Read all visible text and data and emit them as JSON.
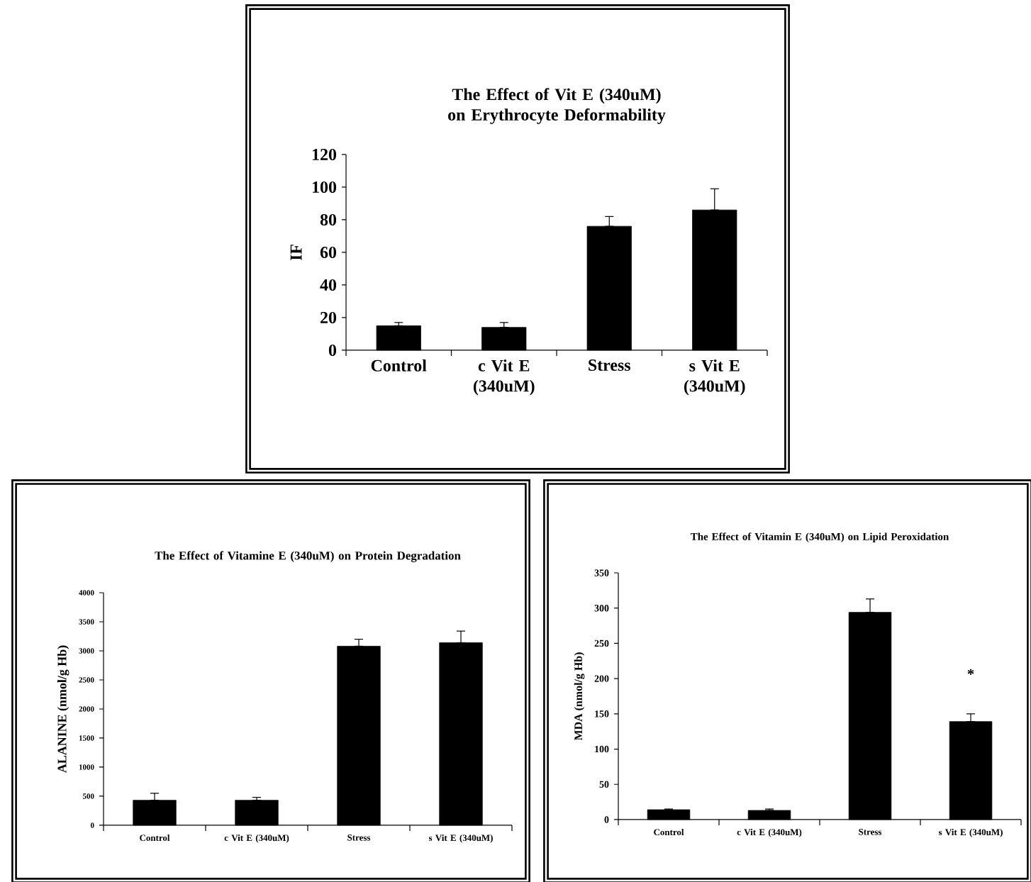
{
  "chart_data": [
    {
      "type": "bar",
      "title": "The Effect of Vit E (340uM) on Erythrocyte Deformability",
      "ylabel": "IF",
      "categories": [
        "Control",
        "c Vit E (340uM)",
        "Stress",
        "s Vit E (340uM)"
      ],
      "values": [
        15,
        14,
        76,
        86
      ],
      "errors": [
        [
          15,
          17
        ],
        [
          14,
          17
        ],
        [
          76,
          82
        ],
        [
          86,
          99
        ]
      ],
      "color": "#000000",
      "ylim": [
        0,
        120
      ],
      "yticks": [
        0,
        20,
        40,
        60,
        80,
        100,
        120
      ]
    },
    {
      "type": "bar",
      "title": "The Effect of Vitamine E (340uM) on Protein Degradation",
      "ylabel": "ALANINE (nmol/g Hb)",
      "categories": [
        "Control",
        "c Vit E (340uM)",
        "Stress",
        "s Vit E (340uM)"
      ],
      "values": [
        430,
        430,
        3080,
        3140
      ],
      "errors": [
        [
          430,
          550
        ],
        [
          430,
          480
        ],
        [
          3080,
          3200
        ],
        [
          3140,
          3340
        ]
      ],
      "color": "#000000",
      "ylim": [
        0,
        4000
      ],
      "yticks": [
        0,
        500,
        1000,
        1500,
        2000,
        2500,
        3000,
        3500,
        4000
      ]
    },
    {
      "type": "bar",
      "title": "The Effect of Vitamin E (340uM) on Lipid Peroxidation",
      "ylabel": "MDA (nmol/g Hb)",
      "categories": [
        "Control",
        "c Vit E (340uM)",
        "Stress",
        "s Vit E (340uM)"
      ],
      "values": [
        14,
        13,
        294,
        139
      ],
      "errors": [
        [
          14,
          15
        ],
        [
          13,
          15
        ],
        [
          294,
          313
        ],
        [
          139,
          150
        ]
      ],
      "color": "#000000",
      "ylim": [
        0,
        350
      ],
      "yticks": [
        0,
        50,
        100,
        150,
        200,
        250,
        300,
        350
      ],
      "annotations": [
        "*"
      ]
    }
  ]
}
